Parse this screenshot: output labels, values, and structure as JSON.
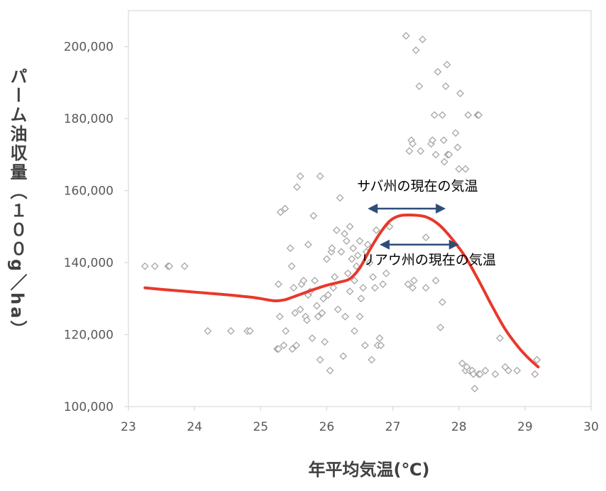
{
  "chart_data": {
    "type": "scatter",
    "title": "",
    "xlabel": "年平均気温(℃)",
    "ylabel": "パーム油収量（１００g／ha）",
    "xlim": [
      23,
      30
    ],
    "ylim": [
      100000,
      210000
    ],
    "x_ticks": [
      23,
      24,
      25,
      26,
      27,
      28,
      29,
      30
    ],
    "x_tick_labels": [
      "23",
      "24",
      "25",
      "26",
      "27",
      "28",
      "29",
      "30"
    ],
    "y_ticks": [
      100000,
      120000,
      140000,
      160000,
      180000,
      200000
    ],
    "y_tick_labels": [
      "100,000",
      "120,000",
      "140,000",
      "160,000",
      "180,000",
      "200,000"
    ],
    "grid": false,
    "colors": {
      "points": "#a6a6a6",
      "trend": "#e8382a",
      "arrows": "#2e4e78",
      "axis": "#d9d9d9"
    },
    "series": [
      {
        "marker": "diamond-open",
        "points": [
          [
            23.25,
            139000
          ],
          [
            23.4,
            139000
          ],
          [
            23.6,
            139000
          ],
          [
            23.62,
            139000
          ],
          [
            23.85,
            139000
          ],
          [
            24.2,
            121000
          ],
          [
            24.55,
            121000
          ],
          [
            24.8,
            121000
          ],
          [
            24.84,
            121000
          ],
          [
            25.25,
            116000
          ],
          [
            25.27,
            116000
          ],
          [
            25.29,
            125000
          ],
          [
            25.3,
            154000
          ],
          [
            25.27,
            134000
          ],
          [
            25.35,
            117000
          ],
          [
            25.37,
            155000
          ],
          [
            25.38,
            121000
          ],
          [
            25.45,
            144000
          ],
          [
            25.47,
            139000
          ],
          [
            25.48,
            116000
          ],
          [
            25.5,
            133000
          ],
          [
            25.52,
            126000
          ],
          [
            25.54,
            117000
          ],
          [
            25.55,
            161000
          ],
          [
            25.6,
            164000
          ],
          [
            25.6,
            127000
          ],
          [
            25.62,
            134000
          ],
          [
            25.65,
            135000
          ],
          [
            25.68,
            125000
          ],
          [
            25.7,
            124000
          ],
          [
            25.72,
            131000
          ],
          [
            25.72,
            145000
          ],
          [
            25.75,
            132000
          ],
          [
            25.78,
            119000
          ],
          [
            25.8,
            153000
          ],
          [
            25.82,
            135000
          ],
          [
            25.85,
            128000
          ],
          [
            25.87,
            125000
          ],
          [
            25.9,
            164000
          ],
          [
            25.9,
            113000
          ],
          [
            25.93,
            126000
          ],
          [
            25.95,
            130000
          ],
          [
            25.97,
            118000
          ],
          [
            26.0,
            141000
          ],
          [
            26.02,
            131000
          ],
          [
            26.05,
            110000
          ],
          [
            26.07,
            143000
          ],
          [
            26.08,
            144000
          ],
          [
            26.1,
            133000
          ],
          [
            26.12,
            136000
          ],
          [
            26.15,
            149000
          ],
          [
            26.17,
            127000
          ],
          [
            26.2,
            158000
          ],
          [
            26.22,
            143000
          ],
          [
            26.25,
            114000
          ],
          [
            26.27,
            148000
          ],
          [
            26.28,
            125000
          ],
          [
            26.3,
            146000
          ],
          [
            26.32,
            137000
          ],
          [
            26.35,
            150000
          ],
          [
            26.35,
            132000
          ],
          [
            26.38,
            141000
          ],
          [
            26.4,
            144000
          ],
          [
            26.42,
            135000
          ],
          [
            26.42,
            121000
          ],
          [
            26.45,
            139000
          ],
          [
            26.47,
            142000
          ],
          [
            26.5,
            146000
          ],
          [
            26.5,
            125000
          ],
          [
            26.52,
            130000
          ],
          [
            26.55,
            133000
          ],
          [
            26.58,
            117000
          ],
          [
            26.6,
            143000
          ],
          [
            26.62,
            145000
          ],
          [
            26.65,
            140000
          ],
          [
            26.68,
            113000
          ],
          [
            26.7,
            136000
          ],
          [
            26.73,
            133000
          ],
          [
            26.75,
            149000
          ],
          [
            26.77,
            117000
          ],
          [
            26.8,
            119000
          ],
          [
            26.82,
            117000
          ],
          [
            26.85,
            134000
          ],
          [
            26.9,
            137000
          ],
          [
            26.95,
            150000
          ],
          [
            27.2,
            203000
          ],
          [
            27.23,
            134000
          ],
          [
            27.25,
            171000
          ],
          [
            27.28,
            174000
          ],
          [
            27.3,
            173000
          ],
          [
            27.3,
            133000
          ],
          [
            27.32,
            135000
          ],
          [
            27.35,
            199000
          ],
          [
            27.4,
            189000
          ],
          [
            27.42,
            171000
          ],
          [
            27.45,
            202000
          ],
          [
            27.5,
            147000
          ],
          [
            27.5,
            133000
          ],
          [
            27.58,
            173000
          ],
          [
            27.6,
            174000
          ],
          [
            27.63,
            181000
          ],
          [
            27.65,
            135000
          ],
          [
            27.65,
            170000
          ],
          [
            27.68,
            193000
          ],
          [
            27.72,
            122000
          ],
          [
            27.75,
            181000
          ],
          [
            27.75,
            129000
          ],
          [
            27.77,
            174000
          ],
          [
            27.78,
            168000
          ],
          [
            27.8,
            189000
          ],
          [
            27.82,
            195000
          ],
          [
            27.83,
            170000
          ],
          [
            27.85,
            170000
          ],
          [
            27.95,
            176000
          ],
          [
            27.98,
            172000
          ],
          [
            28.0,
            166000
          ],
          [
            28.02,
            187000
          ],
          [
            28.05,
            112000
          ],
          [
            28.1,
            110000
          ],
          [
            28.1,
            166000
          ],
          [
            28.12,
            111000
          ],
          [
            28.14,
            181000
          ],
          [
            28.16,
            110000
          ],
          [
            28.2,
            110000
          ],
          [
            28.22,
            109000
          ],
          [
            28.24,
            105000
          ],
          [
            28.28,
            181000
          ],
          [
            28.3,
            181000
          ],
          [
            28.3,
            109000
          ],
          [
            28.32,
            109000
          ],
          [
            28.4,
            110000
          ],
          [
            28.55,
            109000
          ],
          [
            28.62,
            119000
          ],
          [
            28.7,
            111000
          ],
          [
            28.75,
            110000
          ],
          [
            28.88,
            110000
          ],
          [
            29.15,
            109000
          ],
          [
            29.18,
            113000
          ]
        ]
      },
      {
        "marker": "line",
        "points": [
          [
            23.25,
            133000
          ],
          [
            23.6,
            132400
          ],
          [
            24.0,
            131800
          ],
          [
            24.4,
            131200
          ],
          [
            24.8,
            130500
          ],
          [
            25.0,
            130000
          ],
          [
            25.2,
            129400
          ],
          [
            25.35,
            129600
          ],
          [
            25.5,
            130500
          ],
          [
            25.8,
            132500
          ],
          [
            26.0,
            133700
          ],
          [
            26.2,
            134600
          ],
          [
            26.35,
            135500
          ],
          [
            26.5,
            138500
          ],
          [
            26.65,
            143500
          ],
          [
            26.8,
            148000
          ],
          [
            26.95,
            151500
          ],
          [
            27.1,
            153000
          ],
          [
            27.3,
            153200
          ],
          [
            27.5,
            152700
          ],
          [
            27.7,
            150500
          ],
          [
            27.9,
            146500
          ],
          [
            28.1,
            141500
          ],
          [
            28.3,
            135000
          ],
          [
            28.5,
            128000
          ],
          [
            28.7,
            121500
          ],
          [
            28.9,
            116500
          ],
          [
            29.05,
            113500
          ],
          [
            29.2,
            111000
          ]
        ]
      }
    ],
    "annotations": [
      {
        "text": "サバ州の現在の気温",
        "x_start": 26.62,
        "x_end": 27.8,
        "y": 155000,
        "text_x": 26.46,
        "text_y": 160000
      },
      {
        "text": "リアウ州の現在の気温",
        "x_start": 26.8,
        "x_end": 28.0,
        "y": 145000,
        "text_x": 26.52,
        "text_y": 139500
      }
    ]
  }
}
